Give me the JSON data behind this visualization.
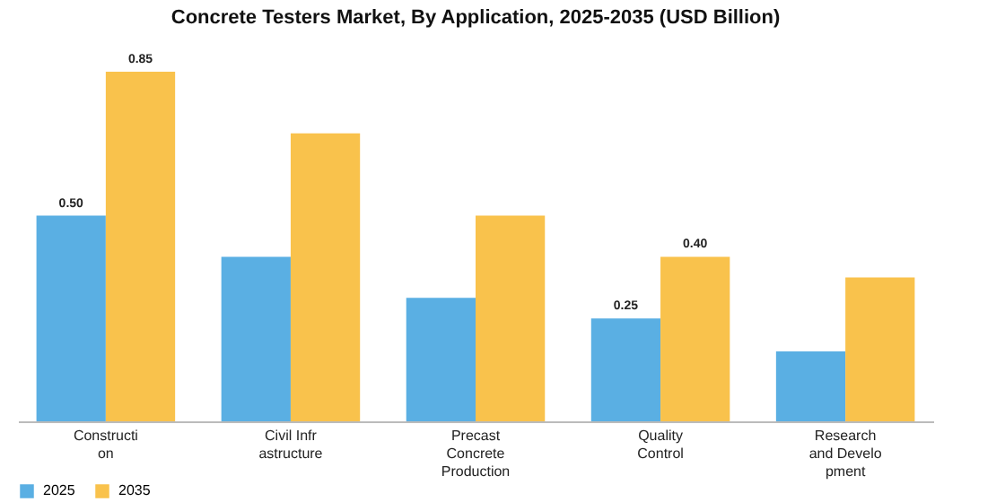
{
  "chart_data": {
    "type": "bar",
    "title": "Concrete Testers Market, By Application, 2025-2035 (USD Billion)",
    "categories": [
      "Constructi\non",
      "Civil Infr\nastructure",
      "Precast\nConcrete\nProduction",
      "Quality\nControl",
      "Research\nand Develo\npment"
    ],
    "series": [
      {
        "name": "2025",
        "color": "#5aafe3",
        "values": [
          0.5,
          0.4,
          0.3,
          0.25,
          0.17
        ],
        "value_labels": [
          "0.50",
          null,
          null,
          "0.25",
          null
        ]
      },
      {
        "name": "2035",
        "color": "#f9c24c",
        "values": [
          0.85,
          0.7,
          0.5,
          0.4,
          0.35
        ],
        "value_labels": [
          "0.85",
          null,
          null,
          "0.40",
          null
        ]
      }
    ],
    "legend": "bottom",
    "grid": false
  }
}
